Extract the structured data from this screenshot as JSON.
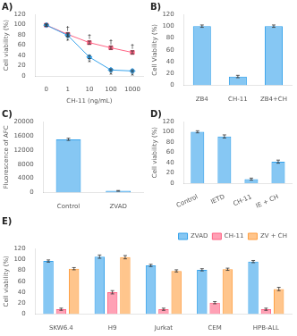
{
  "chart_data": [
    {
      "type": "line",
      "title": "A)",
      "xlabel": "CH-11 (ng/mL)",
      "ylabel": "Cell viability (%)",
      "categories": [
        "0",
        "1",
        "10",
        "100",
        "1000"
      ],
      "series": [
        {
          "values": [
            99,
            79,
            37,
            12,
            10
          ],
          "errors": [
            2,
            3,
            3,
            2,
            2
          ],
          "marker": "diamond",
          "line_style": "solid"
        },
        {
          "values": [
            99,
            81,
            65,
            55,
            46
          ],
          "errors": [
            2,
            3,
            3,
            3,
            3
          ],
          "marker": "square",
          "line_style": "solid"
        }
      ],
      "ylim": [
        0,
        120
      ],
      "yticks": [
        0,
        20,
        40,
        60,
        80,
        100,
        120
      ],
      "grid": false,
      "annotations": [
        {
          "category": "1",
          "series": 1,
          "text": "†",
          "position": "above"
        },
        {
          "category": "10",
          "series": 1,
          "text": "†",
          "position": "above"
        },
        {
          "category": "100",
          "series": 1,
          "text": "†",
          "position": "above"
        },
        {
          "category": "1000",
          "series": 1,
          "text": "†",
          "position": "above"
        },
        {
          "category": "1",
          "series": 0,
          "text": "*",
          "position": "below"
        },
        {
          "category": "10",
          "series": 0,
          "text": "*",
          "position": "below"
        },
        {
          "category": "100",
          "series": 0,
          "text": "*",
          "position": "below"
        },
        {
          "category": "1000",
          "series": 0,
          "text": "*",
          "position": "below"
        }
      ]
    },
    {
      "type": "bar",
      "title": "B)",
      "ylabel": "Cell Viability (%)",
      "categories": [
        "ZB4",
        "CH-11",
        "ZB4+CH"
      ],
      "values": [
        100,
        15,
        100
      ],
      "errors": [
        2,
        2,
        2
      ],
      "ylim": [
        0,
        120
      ],
      "yticks": [
        0,
        20,
        40,
        60,
        80,
        100,
        120
      ],
      "grid": false
    },
    {
      "type": "bar",
      "title": "C)",
      "ylabel": "Fluorescence of AFC",
      "categories": [
        "Control",
        "ZVAD"
      ],
      "values": [
        15000,
        500
      ],
      "errors": [
        300,
        100
      ],
      "ylim": [
        0,
        20000
      ],
      "yticks": [
        0,
        4000,
        8000,
        12000,
        16000,
        20000
      ],
      "grid": false
    },
    {
      "type": "bar",
      "title": "D)",
      "ylabel": "Cell viability (%)",
      "categories": [
        "Control",
        "IETD",
        "CH-11",
        "IE + CH"
      ],
      "values": [
        100,
        91,
        8,
        42
      ],
      "errors": [
        2,
        3,
        2,
        3
      ],
      "ylim": [
        0,
        120
      ],
      "yticks": [
        0,
        20,
        40,
        60,
        80,
        100,
        120
      ],
      "grid": false
    },
    {
      "type": "bar",
      "title": "E)",
      "ylabel": "Cell viability (%)",
      "categories": [
        "SKW6.4",
        "H9",
        "Jurkat",
        "CEM",
        "HPB-ALL"
      ],
      "series": [
        {
          "name": "ZVAD",
          "values": [
            97,
            105,
            89,
            81,
            96
          ],
          "errors": [
            2,
            3,
            2,
            2,
            2
          ]
        },
        {
          "name": "CH-11",
          "values": [
            9,
            40,
            9,
            21,
            9
          ],
          "errors": [
            2,
            3,
            2,
            2,
            2
          ]
        },
        {
          "name": "ZV + CH",
          "values": [
            83,
            104,
            79,
            82,
            46
          ],
          "errors": [
            2,
            3,
            2,
            2,
            3
          ]
        }
      ],
      "ylim": [
        0,
        120
      ],
      "yticks": [
        0,
        20,
        40,
        60,
        80,
        100,
        120
      ],
      "grid": false,
      "legend": "upper right"
    }
  ]
}
